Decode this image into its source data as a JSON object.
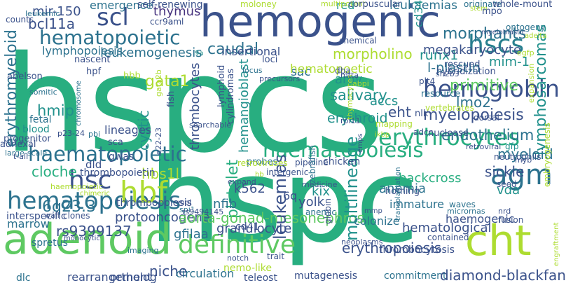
{
  "palette": {
    "purple": "#46327e",
    "indigo": "#3b528b",
    "blue": "#365c8d",
    "steel": "#2c728e",
    "teal": "#277f8e",
    "teal2": "#21918c",
    "green": "#28ae80",
    "lgreen": "#5ec962",
    "lime": "#addc30",
    "yellow": "#c8e020"
  },
  "words": [
    {
      "text": "hspcs",
      "c": "green"
    },
    {
      "text": "hspc",
      "c": "green"
    },
    {
      "text": "hemogenic",
      "c": "indigo"
    },
    {
      "text": "adenoid",
      "c": "lgreen"
    },
    {
      "text": "cht",
      "c": "lime"
    },
    {
      "text": "hemoglobin",
      "c": "indigo"
    },
    {
      "text": "hscs",
      "c": "teal"
    },
    {
      "text": "scl",
      "c": "indigo"
    },
    {
      "text": "hsc",
      "c": "indigo"
    },
    {
      "text": "agm",
      "c": "steel"
    },
    {
      "text": "hematopoiesis",
      "c": "steel"
    },
    {
      "text": "haematopoietic",
      "c": "steel"
    },
    {
      "text": "hematopoietic",
      "c": "steel"
    },
    {
      "text": "haematopoiesis",
      "c": "green"
    },
    {
      "text": "erythrocytes",
      "c": "green"
    },
    {
      "text": "definitive",
      "c": "lgreen"
    },
    {
      "text": "hbf",
      "c": "lime"
    },
    {
      "text": "primitive",
      "c": "lgreen"
    },
    {
      "text": "eht",
      "c": "indigo"
    },
    {
      "text": "myelopoiesis",
      "c": "indigo"
    },
    {
      "text": "endothelium",
      "c": "steel"
    },
    {
      "text": "lmo2",
      "c": "steel"
    },
    {
      "text": "erythroid",
      "c": "teal2"
    },
    {
      "text": "salivary",
      "c": "teal2"
    },
    {
      "text": "accs",
      "c": "teal2"
    },
    {
      "text": "amv",
      "c": "teal2"
    },
    {
      "text": "morpholino",
      "c": "lime"
    },
    {
      "text": "runx1",
      "c": "teal2"
    },
    {
      "text": "l-plastin",
      "c": "steel"
    },
    {
      "text": "morphants",
      "c": "steel"
    },
    {
      "text": "megakaryocyte",
      "c": "indigo"
    },
    {
      "text": "mim-1",
      "c": "teal2"
    },
    {
      "text": "caudal",
      "c": "steel"
    },
    {
      "text": "sac",
      "c": "steel"
    },
    {
      "text": "leukemogenesis",
      "c": "steel"
    },
    {
      "text": "lymphopoiesis",
      "c": "steel"
    },
    {
      "text": "bcl11a",
      "c": "indigo"
    },
    {
      "text": "mir-150",
      "c": "indigo"
    },
    {
      "text": "emergence",
      "c": "steel"
    },
    {
      "text": "self-renewing",
      "c": "indigo"
    },
    {
      "text": "thymus",
      "c": "purple"
    },
    {
      "text": "insertional",
      "c": "indigo"
    },
    {
      "text": "red",
      "c": "teal2"
    },
    {
      "text": "leukaemias",
      "c": "steel"
    },
    {
      "text": "cd34",
      "c": "teal2"
    },
    {
      "text": "hematopoetic",
      "c": "lime"
    },
    {
      "text": "erythromyeloid",
      "c": "steel"
    },
    {
      "text": "cystic",
      "c": "teal2"
    },
    {
      "text": "gata1",
      "c": "lime"
    },
    {
      "text": "hmip",
      "c": "teal2"
    },
    {
      "text": "cloche",
      "c": "green"
    },
    {
      "text": "lineages",
      "c": "indigo"
    },
    {
      "text": "thrombocytes",
      "c": "indigo"
    },
    {
      "text": "hemangioblast",
      "c": "teal2"
    },
    {
      "text": "lymphosarcomas",
      "c": "teal2"
    },
    {
      "text": "platelet",
      "c": "green"
    },
    {
      "text": "hbs1l",
      "c": "lime"
    },
    {
      "text": "dld",
      "c": "indigo"
    },
    {
      "text": "thrombopoietin",
      "c": "indigo"
    },
    {
      "text": "thrombopoiesis",
      "c": "indigo"
    },
    {
      "text": "6q23.3",
      "c": "steel"
    },
    {
      "text": "rs9399137",
      "c": "indigo"
    },
    {
      "text": "marrow",
      "c": "steel"
    },
    {
      "text": "interspecific",
      "c": "indigo"
    },
    {
      "text": "protooncogene",
      "c": "indigo"
    },
    {
      "text": "aorta-gonad-mesonephros",
      "c": "lgreen"
    },
    {
      "text": "gfilaa",
      "c": "steel"
    },
    {
      "text": "granulocyte",
      "c": "indigo"
    },
    {
      "text": "nfib",
      "c": "steel"
    },
    {
      "text": "cd41",
      "c": "indigo"
    },
    {
      "text": "leukemias",
      "c": "indigo"
    },
    {
      "text": "k562",
      "c": "indigo"
    },
    {
      "text": "6q",
      "c": "indigo"
    },
    {
      "text": "yolk",
      "c": "indigo"
    },
    {
      "text": "kix",
      "c": "teal2"
    },
    {
      "text": "anemia",
      "c": "steel"
    },
    {
      "text": "multilineage",
      "c": "teal2"
    },
    {
      "text": "immature",
      "c": "steel"
    },
    {
      "text": "colonize",
      "c": "steel"
    },
    {
      "text": "hematological",
      "c": "indigo"
    },
    {
      "text": "erythropoiesis",
      "c": "indigo"
    },
    {
      "text": "haemogenic",
      "c": "indigo"
    },
    {
      "text": "vda",
      "c": "teal2"
    },
    {
      "text": "sickle",
      "c": "indigo"
    },
    {
      "text": "myeloid",
      "c": "steel"
    },
    {
      "text": "backcross",
      "c": "green"
    },
    {
      "text": "thrombocytosis",
      "c": "indigo"
    },
    {
      "text": "commitment",
      "c": "steel"
    },
    {
      "text": "diamond-blackfan",
      "c": "indigo"
    },
    {
      "text": "rearrangement",
      "c": "indigo"
    },
    {
      "text": "ortholog",
      "c": "indigo"
    },
    {
      "text": "niche",
      "c": "indigo"
    },
    {
      "text": "circulation",
      "c": "steel"
    },
    {
      "text": "nemo-like",
      "c": "lime"
    },
    {
      "text": "teleost",
      "c": "indigo"
    },
    {
      "text": "mutagenesis",
      "c": "indigo"
    },
    {
      "text": "dlc",
      "c": "steel"
    },
    {
      "text": "spretus",
      "c": "steel"
    },
    {
      "text": "ccr9a",
      "c": "indigo"
    },
    {
      "text": "aml",
      "c": "indigo"
    },
    {
      "text": "moloney",
      "c": "lime"
    },
    {
      "text": "multipotent",
      "c": "lime"
    },
    {
      "text": "corpuscular",
      "c": "indigo"
    },
    {
      "text": "originate",
      "c": "steel"
    },
    {
      "text": "whole-mount",
      "c": "indigo"
    },
    {
      "text": "stem",
      "c": "lime"
    },
    {
      "text": "mpo",
      "c": "indigo"
    },
    {
      "text": "ontogeny",
      "c": "steel"
    },
    {
      "text": "myeloblastic",
      "c": "indigo"
    },
    {
      "text": "adelta",
      "c": "lime"
    },
    {
      "text": "egfp",
      "c": "lime"
    },
    {
      "text": "counts",
      "c": "indigo"
    },
    {
      "text": "leukemic",
      "c": "steel"
    },
    {
      "text": "nascent",
      "c": "indigo"
    },
    {
      "text": "hpf",
      "c": "indigo"
    },
    {
      "text": "hbb",
      "c": "lime"
    },
    {
      "text": "abelson",
      "c": "indigo"
    },
    {
      "text": "somitic",
      "c": "steel"
    },
    {
      "text": "fetal",
      "c": "steel"
    },
    {
      "text": "blood",
      "c": "teal2"
    },
    {
      "text": "progenitor",
      "c": "indigo"
    },
    {
      "text": "adnexal",
      "c": "indigo"
    },
    {
      "text": "large-scale",
      "c": "steel"
    },
    {
      "text": "t-all",
      "c": "indigo"
    },
    {
      "text": "p23-24",
      "c": "indigo"
    },
    {
      "text": "pbi",
      "c": "steel"
    },
    {
      "text": "chemical",
      "c": "indigo"
    },
    {
      "text": "precursors",
      "c": "indigo"
    },
    {
      "text": "locus",
      "c": "steel"
    },
    {
      "text": "loci",
      "c": "indigo"
    },
    {
      "text": "sh2b3",
      "c": "indigo"
    },
    {
      "text": "hybridization",
      "c": "indigo"
    },
    {
      "text": "rescued",
      "c": "indigo"
    },
    {
      "text": "resource",
      "c": "steel"
    },
    {
      "text": "vertebrates",
      "c": "lime"
    },
    {
      "text": "plt4",
      "c": "indigo"
    },
    {
      "text": "nlk",
      "c": "indigo"
    },
    {
      "text": "dorsal",
      "c": "indigo"
    },
    {
      "text": "expansion",
      "c": "lime"
    },
    {
      "text": "mapping",
      "c": "lime"
    },
    {
      "text": "adcc",
      "c": "indigo"
    },
    {
      "text": "nuclease",
      "c": "indigo"
    },
    {
      "text": "retroviral",
      "c": "indigo"
    },
    {
      "text": "gfp",
      "c": "teal2"
    },
    {
      "text": "myb",
      "c": "indigo"
    },
    {
      "text": "neutrophils",
      "c": "indigo"
    },
    {
      "text": "seed",
      "c": "indigo"
    },
    {
      "text": "embryogenesis",
      "c": "lime"
    },
    {
      "text": "homing",
      "c": "indigo"
    },
    {
      "text": "waves",
      "c": "steel"
    },
    {
      "text": "micrornas",
      "c": "steel"
    },
    {
      "text": "nrd",
      "c": "indigo"
    },
    {
      "text": "fusion",
      "c": "indigo"
    },
    {
      "text": "contained",
      "c": "indigo"
    },
    {
      "text": "neoplasms",
      "c": "indigo"
    },
    {
      "text": "probes",
      "c": "steel"
    },
    {
      "text": "pipeline",
      "c": "indigo"
    },
    {
      "text": "chicken",
      "c": "indigo"
    },
    {
      "text": "intergenic",
      "c": "indigo"
    },
    {
      "text": "expand",
      "c": "indigo"
    },
    {
      "text": "medicine",
      "c": "indigo"
    },
    {
      "text": "zebrafish",
      "c": "steel"
    },
    {
      "text": "anemic",
      "c": "steel"
    },
    {
      "text": "retroviruses",
      "c": "lime"
    },
    {
      "text": "sca",
      "c": "indigo"
    },
    {
      "text": "gwas",
      "c": "indigo"
    },
    {
      "text": "clones",
      "c": "indigo"
    },
    {
      "text": "mpl",
      "c": "indigo"
    },
    {
      "text": "spi1",
      "c": "steel"
    },
    {
      "text": "rs9494145",
      "c": "indigo"
    },
    {
      "text": "haemopoietic",
      "c": "lime"
    },
    {
      "text": "wall",
      "c": "indigo"
    },
    {
      "text": "imaging",
      "c": "steel"
    },
    {
      "text": "monocytic",
      "c": "indigo"
    },
    {
      "text": "notch",
      "c": "indigo"
    },
    {
      "text": "trait",
      "c": "indigo"
    },
    {
      "text": "q22-23",
      "c": "indigo"
    },
    {
      "text": "fish",
      "c": "indigo"
    },
    {
      "text": "lymphoid",
      "c": "indigo"
    },
    {
      "text": "cylindromas",
      "c": "indigo"
    },
    {
      "text": "9a",
      "c": "teal2"
    },
    {
      "text": "searchable",
      "c": "indigo"
    },
    {
      "text": "globin",
      "c": "indigo"
    },
    {
      "text": "dba",
      "c": "indigo"
    },
    {
      "text": "rpl11",
      "c": "indigo"
    },
    {
      "text": "abpi",
      "c": "lime"
    },
    {
      "text": "thymocytes",
      "c": "lime"
    },
    {
      "text": "mtta",
      "c": "indigo"
    },
    {
      "text": "hb",
      "c": "lime"
    },
    {
      "text": "chromosome",
      "c": "steel"
    },
    {
      "text": "gata2b",
      "c": "lime"
    },
    {
      "text": "chimeric",
      "c": "lime"
    },
    {
      "text": "ikbp",
      "c": "lime"
    },
    {
      "text": "emps",
      "c": "indigo"
    },
    {
      "text": "transplantation",
      "c": "steel"
    },
    {
      "text": "mmp",
      "c": "indigo"
    },
    {
      "text": "engraftment",
      "c": "lime"
    }
  ]
}
